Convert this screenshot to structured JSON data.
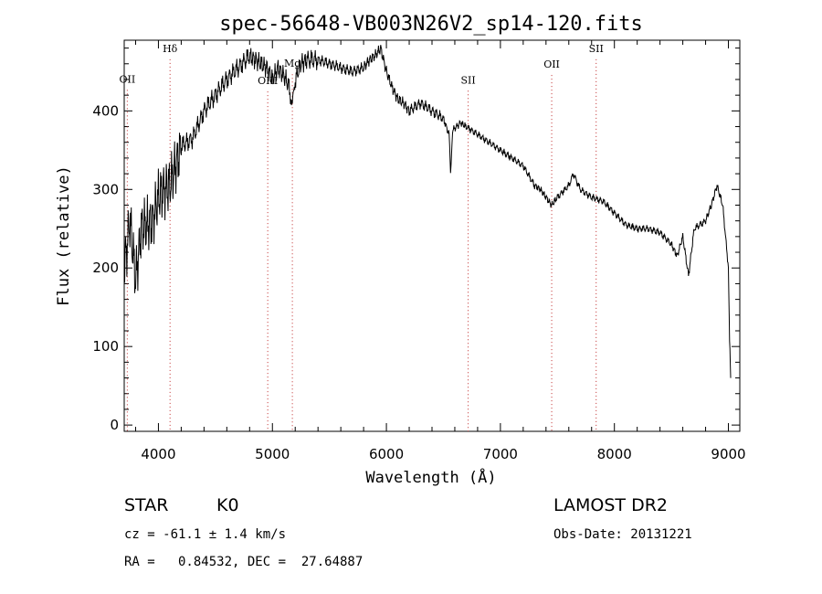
{
  "chart_data": {
    "type": "line",
    "title": "spec-56648-VB003N26V2_sp14-120.fits",
    "xlabel": "Wavelength (Å)",
    "ylabel": "Flux (relative)",
    "xlim": [
      3700,
      9100
    ],
    "ylim": [
      -8,
      490
    ],
    "xticks": [
      4000,
      5000,
      6000,
      7000,
      8000,
      9000
    ],
    "yticks": [
      0,
      100,
      200,
      300,
      400
    ],
    "grid": false,
    "series": [
      {
        "color": "#000000",
        "x": [
          3700,
          3750,
          3800,
          3850,
          3900,
          3950,
          4000,
          4050,
          4100,
          4150,
          4200,
          4300,
          4400,
          4500,
          4600,
          4700,
          4800,
          4850,
          4900,
          4950,
          5000,
          5050,
          5100,
          5150,
          5175,
          5200,
          5250,
          5300,
          5400,
          5500,
          5600,
          5700,
          5800,
          5850,
          5900,
          5950,
          6000,
          6050,
          6100,
          6150,
          6200,
          6300,
          6400,
          6500,
          6550,
          6563,
          6580,
          6650,
          6700,
          6800,
          6900,
          7000,
          7100,
          7200,
          7300,
          7350,
          7400,
          7450,
          7500,
          7600,
          7640,
          7700,
          7800,
          7900,
          8000,
          8100,
          8200,
          8300,
          8400,
          8500,
          8550,
          8600,
          8650,
          8700,
          8800,
          8850,
          8900,
          8950,
          9000,
          9010,
          9020
        ],
        "y": [
          200,
          260,
          185,
          250,
          255,
          260,
          290,
          300,
          305,
          330,
          355,
          365,
          400,
          420,
          440,
          455,
          470,
          465,
          460,
          455,
          440,
          455,
          445,
          430,
          405,
          440,
          460,
          465,
          465,
          460,
          455,
          450,
          455,
          465,
          470,
          480,
          450,
          430,
          415,
          410,
          400,
          410,
          400,
          390,
          370,
          320,
          375,
          385,
          380,
          370,
          360,
          350,
          340,
          330,
          305,
          300,
          290,
          280,
          290,
          305,
          320,
          300,
          290,
          285,
          270,
          255,
          250,
          250,
          245,
          230,
          215,
          240,
          190,
          250,
          260,
          280,
          305,
          280,
          200,
          110,
          60
        ]
      }
    ],
    "lines": [
      {
        "wavelength": 3727,
        "label": "OII",
        "label_y": 436
      },
      {
        "wavelength": 4102,
        "label": "Hδ",
        "label_y": 475
      },
      {
        "wavelength": 4959,
        "label": "OIII",
        "label_y": 434
      },
      {
        "wavelength": 5175,
        "label": "Mg",
        "label_y": 456
      },
      {
        "wavelength": 6717,
        "label": "SII",
        "label_y": 435
      },
      {
        "wavelength": 7450,
        "label": "OII",
        "label_y": 455
      },
      {
        "wavelength": 7840,
        "label": "SII",
        "label_y": 475
      }
    ]
  },
  "info": {
    "class_label": "STAR",
    "subclass": "K0",
    "survey": "LAMOST DR2",
    "redshift": "cz = -61.1 ± 1.4 km/s",
    "obs_date": "Obs-Date: 20131221",
    "coords": "RA =   0.84532, DEC =  27.64887"
  }
}
